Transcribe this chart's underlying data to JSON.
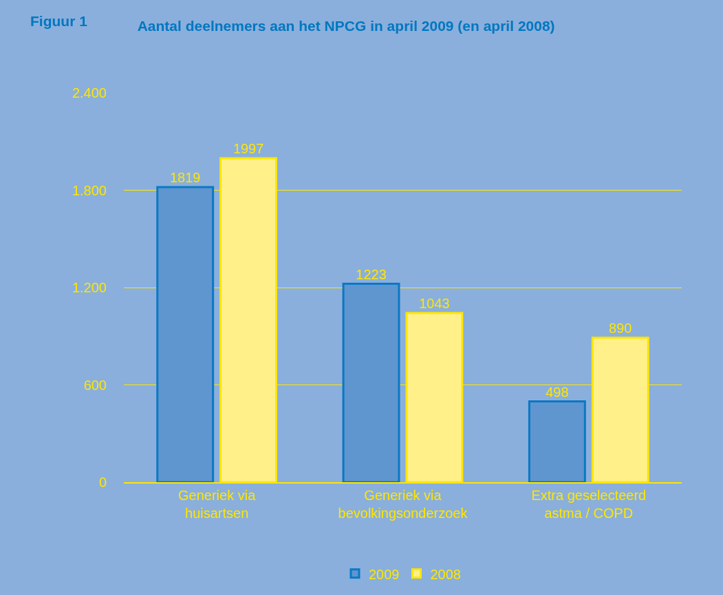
{
  "chart_data": {
    "type": "bar",
    "title": "Aantal deelnemers aan het NPCG in april 2009 (en april 2008)",
    "annotations": [
      "Figuur 1"
    ],
    "categories": [
      "Generiek via huisartsen",
      "Generiek via bevolkingsonderzoek",
      "Extra geselecteerd astma / COPD"
    ],
    "series": [
      {
        "name": "2009",
        "color": "#5f96d0",
        "values": [
          1819,
          1223,
          498
        ]
      },
      {
        "name": "2008",
        "color": "#fff08a",
        "values": [
          1997,
          1043,
          890
        ]
      }
    ],
    "ylim": [
      0,
      2400
    ],
    "yticks": [
      0,
      {
        "value": 600,
        "label": "600"
      },
      {
        "value": 1200,
        "label": "1.200"
      },
      {
        "value": 1800,
        "label": "1.800"
      },
      {
        "value": 2400,
        "label": "2.400"
      }
    ],
    "grid": "y",
    "legend": "bottom",
    "data_labels": true
  }
}
